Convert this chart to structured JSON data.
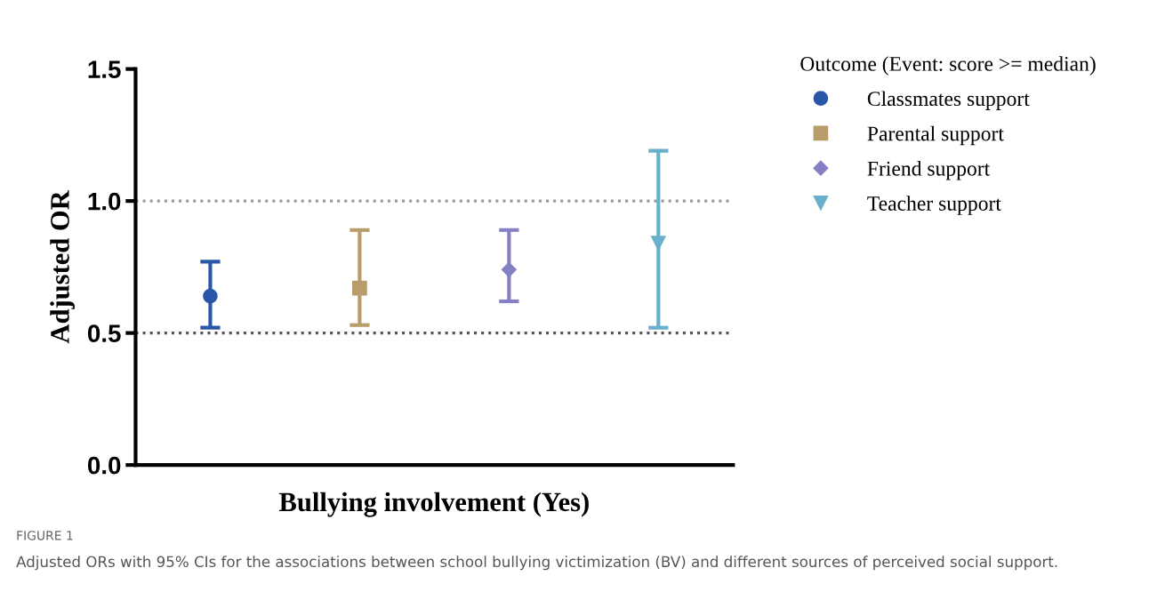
{
  "chart_data": {
    "type": "scatter",
    "xlabel": "Bullying involvement (Yes)",
    "ylabel": "Adjusted OR",
    "legend_title": "Outcome (Event: score >= median)",
    "legend": "right",
    "tick_labels": "y",
    "categories": [
      null,
      null,
      null,
      null
    ],
    "ylim": [
      0,
      1.5
    ],
    "yticks": [
      {
        "value": 0,
        "label": "0.0"
      },
      0.5,
      {
        "value": 1,
        "label": "1.0"
      },
      1.5
    ],
    "series": [
      {
        "name": "Classmates support",
        "color": "#2a56a8",
        "marker": "circle",
        "values": [
          0.64,
          null,
          null,
          null
        ],
        "errors": [
          [
            0.52,
            0.77
          ],
          null,
          null,
          null
        ]
      },
      {
        "name": "Parental support",
        "color": "#b89c6a",
        "marker": "square",
        "values": [
          null,
          0.67,
          null,
          null
        ],
        "errors": [
          null,
          [
            0.53,
            0.89
          ],
          null,
          null
        ]
      },
      {
        "name": "Friend support",
        "color": "#8580c4",
        "marker": "diamond",
        "values": [
          null,
          null,
          0.74,
          null
        ],
        "errors": [
          null,
          null,
          [
            0.62,
            0.89
          ],
          null
        ]
      },
      {
        "name": "Teacher support",
        "color": "#6ab0cc",
        "marker": "triangle",
        "values": [
          null,
          null,
          null,
          0.84
        ],
        "errors": [
          null,
          null,
          null,
          [
            0.52,
            1.19
          ]
        ]
      }
    ],
    "ref_lines": [
      {
        "axis": "y",
        "value": 0.5,
        "label": null,
        "color": "#555555",
        "line_style": "dotted"
      },
      {
        "axis": "y",
        "value": 1.0,
        "label": null,
        "color": "#999999",
        "line_style": "dotted"
      }
    ],
    "annotations": [
      "FIGURE 1",
      "Adjusted ORs with 95% CIs for the associations between school bullying victimization (BV) and different sources of perceived social support."
    ]
  }
}
